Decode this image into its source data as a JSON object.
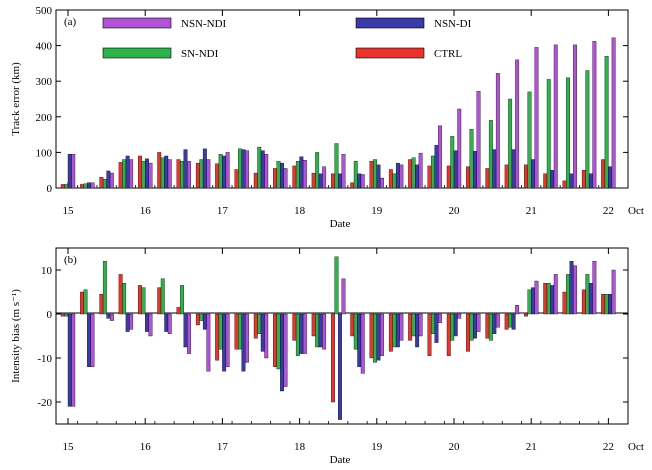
{
  "series_colors": {
    "CTRL": "#e8342c",
    "SN-NDI": "#2db34a",
    "NSN-DI": "#3a3aa8",
    "NSN-NDI": "#b153d6"
  },
  "chart_data": [
    {
      "type": "bar",
      "panel_label": "(a)",
      "ylabel": "Track error (km)",
      "xlabel": "Date",
      "x_unit_label": "Oct",
      "ylim": [
        0,
        500
      ],
      "yticks": [
        0,
        100,
        200,
        300,
        400,
        500
      ],
      "x_tick_labels": [
        "15",
        "16",
        "17",
        "18",
        "19",
        "20",
        "21",
        "22"
      ],
      "legend": [
        "NSN-NDI",
        "NSN-DI",
        "SN-NDI",
        "CTRL"
      ],
      "categories": [
        "15/00",
        "15/06",
        "15/12",
        "15/18",
        "16/00",
        "16/06",
        "16/12",
        "16/18",
        "17/00",
        "17/06",
        "17/12",
        "17/18",
        "18/00",
        "18/06",
        "18/12",
        "18/18",
        "19/00",
        "19/06",
        "19/12",
        "19/18",
        "20/00",
        "20/06",
        "20/12",
        "20/18",
        "21/00",
        "21/06",
        "21/12",
        "21/18",
        "22/00"
      ],
      "series": [
        {
          "name": "CTRL",
          "values": [
            10,
            10,
            30,
            72,
            90,
            100,
            80,
            70,
            68,
            52,
            42,
            55,
            62,
            42,
            40,
            15,
            75,
            52,
            80,
            62,
            62,
            60,
            55,
            65,
            65,
            40,
            20,
            50,
            80
          ]
        },
        {
          "name": "SN-NDI",
          "values": [
            10,
            12,
            25,
            80,
            75,
            85,
            75,
            80,
            95,
            110,
            115,
            75,
            75,
            100,
            125,
            75,
            80,
            40,
            85,
            90,
            145,
            165,
            190,
            250,
            270,
            305,
            310,
            330,
            370
          ]
        },
        {
          "name": "NSN-DI",
          "values": [
            95,
            15,
            48,
            90,
            82,
            90,
            108,
            110,
            90,
            108,
            105,
            70,
            88,
            40,
            40,
            40,
            65,
            70,
            65,
            120,
            105,
            103,
            108,
            108,
            80,
            50,
            40,
            40,
            60
          ]
        },
        {
          "name": "NSN-NDI",
          "values": [
            95,
            15,
            42,
            80,
            70,
            80,
            75,
            80,
            100,
            105,
            95,
            55,
            78,
            60,
            95,
            38,
            28,
            65,
            98,
            175,
            222,
            272,
            322,
            360,
            395,
            402,
            402,
            412,
            422
          ]
        }
      ]
    },
    {
      "type": "bar",
      "panel_label": "(b)",
      "ylabel": "Intensity bias (m s⁻¹)",
      "xlabel": "Date",
      "x_unit_label": "Oct",
      "ylim": [
        -25,
        15
      ],
      "yticks": [
        -20,
        -10,
        0,
        10
      ],
      "x_tick_labels": [
        "15",
        "16",
        "17",
        "18",
        "19",
        "20",
        "21",
        "22"
      ],
      "categories": [
        "15/00",
        "15/06",
        "15/12",
        "15/18",
        "16/00",
        "16/06",
        "16/12",
        "16/18",
        "17/00",
        "17/06",
        "17/12",
        "17/18",
        "18/00",
        "18/06",
        "18/12",
        "18/18",
        "19/00",
        "19/06",
        "19/12",
        "19/18",
        "20/00",
        "20/06",
        "20/12",
        "20/18",
        "21/00",
        "21/06",
        "21/12",
        "21/18",
        "22/00"
      ],
      "series": [
        {
          "name": "CTRL",
          "values": [
            -0.5,
            5.0,
            4.5,
            9.0,
            6.5,
            6.0,
            1.5,
            -2.5,
            -10.5,
            -8.0,
            -5.5,
            -12.0,
            -6.0,
            -5.0,
            -20.0,
            -5.0,
            -10.0,
            -8.5,
            -6.0,
            -9.5,
            -9.5,
            -8.5,
            -5.5,
            -3.5,
            -0.5,
            7.0,
            5.0,
            5.5,
            4.5
          ]
        },
        {
          "name": "SN-NDI",
          "values": [
            -0.5,
            5.5,
            12.0,
            7.0,
            6.0,
            8.0,
            6.5,
            -1.5,
            -8.0,
            -8.0,
            -4.5,
            -12.5,
            -9.5,
            -7.5,
            13.0,
            -8.0,
            -11.0,
            -7.5,
            -5.0,
            -4.5,
            -6.0,
            -6.0,
            -6.0,
            -3.0,
            5.5,
            7.0,
            9.0,
            9.0,
            4.5
          ]
        },
        {
          "name": "NSN-DI",
          "values": [
            -21.0,
            -12.0,
            -1.0,
            -4.0,
            -4.0,
            -4.0,
            -7.5,
            -3.5,
            -13.0,
            -13.0,
            -8.5,
            -17.5,
            -9.0,
            -7.5,
            -24.0,
            -12.0,
            -10.5,
            -7.5,
            -7.5,
            -6.5,
            -5.0,
            -5.5,
            -4.5,
            -3.5,
            6.0,
            6.5,
            12.0,
            7.0,
            4.5
          ]
        },
        {
          "name": "NSN-NDI",
          "values": [
            -21.0,
            -12.0,
            -1.5,
            -3.5,
            -5.0,
            -4.5,
            -9.0,
            -13.0,
            -12.0,
            -11.0,
            -10.0,
            -16.5,
            -9.0,
            -8.0,
            8.0,
            -13.5,
            -9.5,
            -6.0,
            -5.0,
            -2.0,
            -1.0,
            -4.0,
            -3.0,
            2.0,
            7.5,
            9.0,
            11.0,
            12.0,
            10.0
          ]
        }
      ]
    }
  ]
}
